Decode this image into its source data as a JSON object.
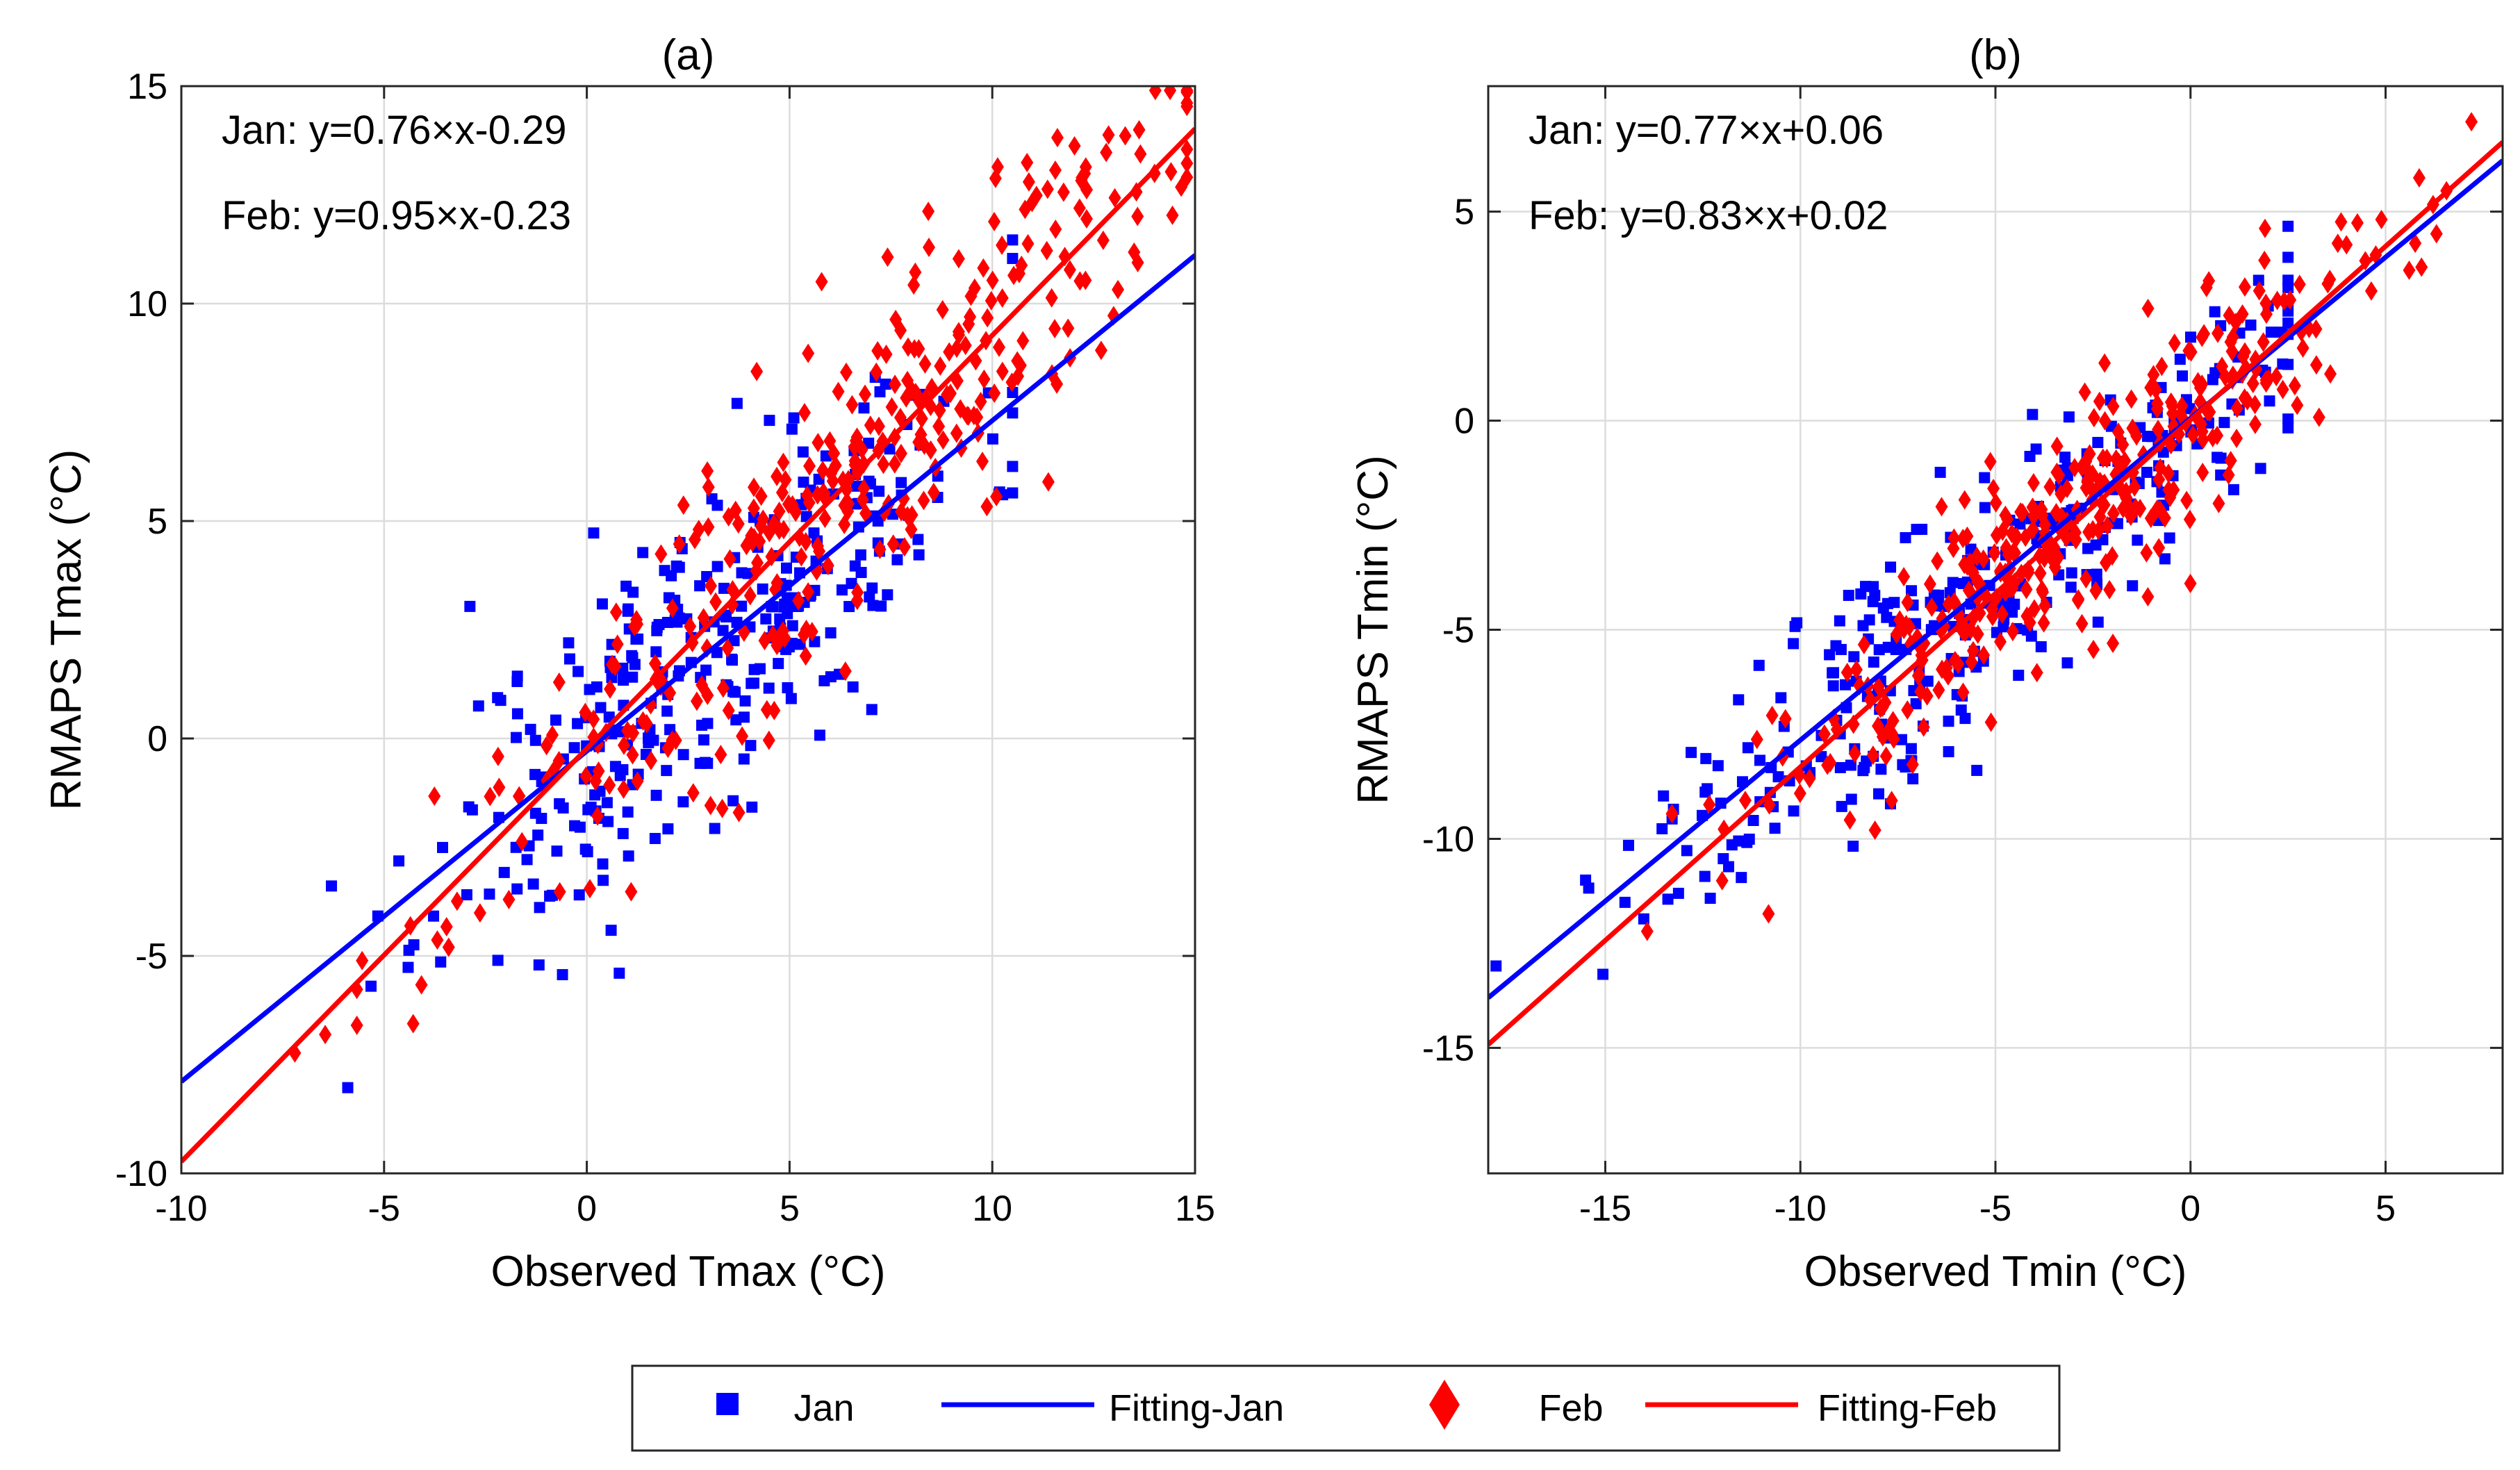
{
  "colors": {
    "jan": "#0000ff",
    "feb": "#ff0000",
    "grid": "#dcdcdc",
    "axis": "#262626"
  },
  "legend": {
    "items": [
      {
        "label": "Jan",
        "marker": "square-icon",
        "color": "#0000ff"
      },
      {
        "label": "Fitting-Jan",
        "marker": "line-icon",
        "color": "#0000ff"
      },
      {
        "label": "Feb",
        "marker": "diamond-icon",
        "color": "#ff0000"
      },
      {
        "label": "Fitting-Feb",
        "marker": "line-icon",
        "color": "#ff0000"
      }
    ]
  },
  "chart_data": [
    {
      "type": "scatter",
      "title": "(a)",
      "xlabel": "Observed Tmax (°C)",
      "ylabel": "RMAPS Tmax (°C)",
      "xlim": [
        -10,
        15
      ],
      "ylim": [
        -10,
        15
      ],
      "xticks": [
        -10,
        -5,
        0,
        5,
        10,
        15
      ],
      "yticks": [
        -10,
        -5,
        0,
        5,
        10,
        15
      ],
      "xtick_labels": [
        "-10",
        "-5",
        "0",
        "5",
        "10",
        "15"
      ],
      "ytick_labels": [
        "-10",
        "-5",
        "0",
        "5",
        "10",
        "15"
      ],
      "grid": true,
      "equations": [
        "Jan: y=0.76×x-0.29",
        "Feb: y=0.95×x-0.23"
      ],
      "series": [
        {
          "name": "Jan",
          "marker": "square",
          "color": "#0000ff",
          "gen": {
            "seed": 11,
            "n": 330,
            "xmean": 3.0,
            "xsd": 3.3,
            "xmin": -8,
            "xmax": 10.5,
            "slope": 0.76,
            "intercept": -0.29,
            "noise": 1.9
          }
        },
        {
          "name": "Feb",
          "marker": "diamond",
          "color": "#ff0000",
          "gen": {
            "seed": 23,
            "n": 360,
            "xmean": 6.0,
            "xsd": 4.6,
            "xmin": -7.2,
            "xmax": 14.8,
            "slope": 0.95,
            "intercept": -0.23,
            "noise": 1.7
          }
        }
      ],
      "fits": [
        {
          "name": "Fitting-Jan",
          "slope": 0.76,
          "intercept": -0.29,
          "color": "#0000ff"
        },
        {
          "name": "Fitting-Feb",
          "slope": 0.95,
          "intercept": -0.23,
          "color": "#ff0000"
        }
      ]
    },
    {
      "type": "scatter",
      "title": "(b)",
      "xlabel": "Observed Tmin (°C)",
      "ylabel": "RMAPS Tmin (°C)",
      "xlim": [
        -18,
        8
      ],
      "ylim": [
        -18,
        8
      ],
      "xticks": [
        -15,
        -10,
        -5,
        0,
        5
      ],
      "yticks": [
        -15,
        -10,
        -5,
        0,
        5
      ],
      "xtick_labels": [
        "-15",
        "-10",
        "-5",
        "0",
        "5"
      ],
      "ytick_labels": [
        "-15",
        "-10",
        "-5",
        "0",
        "5"
      ],
      "grid": true,
      "equations": [
        "Jan: y=0.77×x+0.06",
        "Feb: y=0.83×x+0.02"
      ],
      "series": [
        {
          "name": "Jan",
          "marker": "square",
          "color": "#0000ff",
          "gen": {
            "seed": 37,
            "n": 320,
            "xmean": -5.5,
            "xsd": 4.2,
            "xmin": -17.8,
            "xmax": 2.5,
            "slope": 0.77,
            "intercept": 0.06,
            "noise": 1.5
          }
        },
        {
          "name": "Feb",
          "marker": "diamond",
          "color": "#ff0000",
          "gen": {
            "seed": 53,
            "n": 380,
            "xmean": -2.5,
            "xsd": 4.3,
            "xmin": -17.5,
            "xmax": 7.2,
            "slope": 0.83,
            "intercept": 0.02,
            "noise": 1.3
          }
        }
      ],
      "fits": [
        {
          "name": "Fitting-Jan",
          "slope": 0.77,
          "intercept": 0.06,
          "color": "#0000ff"
        },
        {
          "name": "Fitting-Feb",
          "slope": 0.83,
          "intercept": 0.02,
          "color": "#ff0000"
        }
      ]
    }
  ]
}
